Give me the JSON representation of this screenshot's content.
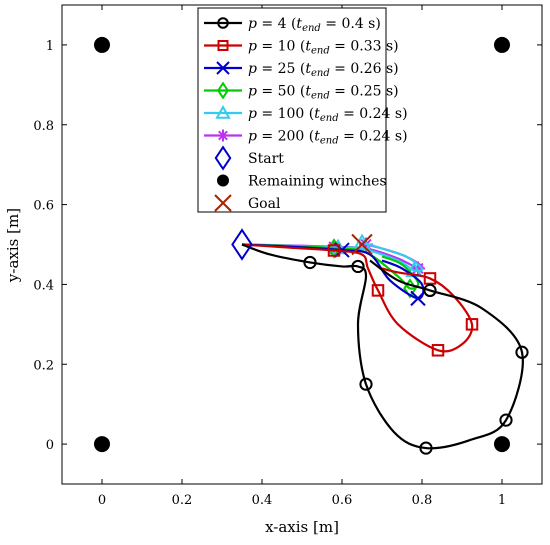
{
  "chart_data": {
    "type": "line",
    "title": "",
    "xlabel": "x-axis [m]",
    "ylabel": "y-axis [m]",
    "xlim": [
      -0.1,
      1.1
    ],
    "ylim": [
      -0.1,
      1.1
    ],
    "grid": false,
    "legend_position": "top",
    "x_ticks": [
      "0",
      "0.2",
      "0.4",
      "0.6",
      "0.8",
      "1"
    ],
    "x_tick_values": [
      0,
      0.2,
      0.4,
      0.6,
      0.8,
      1
    ],
    "y_ticks": [
      "0",
      "0.2",
      "0.4",
      "0.6",
      "0.8",
      "1"
    ],
    "y_tick_values": [
      0,
      0.2,
      0.4,
      0.6,
      0.8,
      1
    ],
    "series": [
      {
        "name": "p = 4 (t_end = 0.4 s)",
        "p": "4",
        "tend": "0.4",
        "color": "#000000",
        "marker": "circle",
        "points": [
          [
            0.35,
            0.5
          ],
          [
            0.42,
            0.475
          ],
          [
            0.52,
            0.455
          ],
          [
            0.6,
            0.445
          ],
          [
            0.64,
            0.445
          ],
          [
            0.66,
            0.42
          ],
          [
            0.64,
            0.3
          ],
          [
            0.66,
            0.15
          ],
          [
            0.73,
            0.03
          ],
          [
            0.81,
            -0.01
          ],
          [
            0.92,
            0.01
          ],
          [
            1.01,
            0.06
          ],
          [
            1.05,
            0.23
          ],
          [
            0.95,
            0.34
          ],
          [
            0.82,
            0.385
          ],
          [
            0.74,
            0.41
          ],
          [
            0.67,
            0.46
          ]
        ],
        "markers": [
          [
            0.52,
            0.455
          ],
          [
            0.64,
            0.445
          ],
          [
            0.66,
            0.15
          ],
          [
            0.81,
            -0.01
          ],
          [
            1.01,
            0.06
          ],
          [
            1.05,
            0.23
          ],
          [
            0.82,
            0.385
          ]
        ]
      },
      {
        "name": "p = 10 (t_end = 0.33 s)",
        "p": "10",
        "tend": "0.33",
        "color": "#cc0000",
        "marker": "square",
        "points": [
          [
            0.35,
            0.5
          ],
          [
            0.47,
            0.492
          ],
          [
            0.58,
            0.485
          ],
          [
            0.65,
            0.475
          ],
          [
            0.665,
            0.44
          ],
          [
            0.69,
            0.385
          ],
          [
            0.74,
            0.3
          ],
          [
            0.84,
            0.235
          ],
          [
            0.9,
            0.25
          ],
          [
            0.925,
            0.3
          ],
          [
            0.88,
            0.37
          ],
          [
            0.82,
            0.415
          ],
          [
            0.74,
            0.43
          ],
          [
            0.7,
            0.44
          ]
        ],
        "markers": [
          [
            0.58,
            0.485
          ],
          [
            0.69,
            0.385
          ],
          [
            0.84,
            0.235
          ],
          [
            0.925,
            0.3
          ],
          [
            0.82,
            0.415
          ]
        ]
      },
      {
        "name": "p = 25 (t_end = 0.26 s)",
        "p": "25",
        "tend": "0.26",
        "color": "#0000cc",
        "marker": "x",
        "points": [
          [
            0.35,
            0.5
          ],
          [
            0.5,
            0.493
          ],
          [
            0.6,
            0.486
          ],
          [
            0.67,
            0.475
          ],
          [
            0.72,
            0.41
          ],
          [
            0.79,
            0.365
          ],
          [
            0.8,
            0.4
          ],
          [
            0.75,
            0.44
          ],
          [
            0.7,
            0.46
          ]
        ],
        "markers": [
          [
            0.6,
            0.486
          ],
          [
            0.79,
            0.365
          ]
        ]
      },
      {
        "name": "p = 50 (t_end = 0.25 s)",
        "p": "50",
        "tend": "0.25",
        "color": "#00cc00",
        "marker": "diamond",
        "points": [
          [
            0.35,
            0.5
          ],
          [
            0.5,
            0.495
          ],
          [
            0.58,
            0.49
          ],
          [
            0.66,
            0.48
          ],
          [
            0.74,
            0.42
          ],
          [
            0.77,
            0.39
          ],
          [
            0.79,
            0.405
          ],
          [
            0.75,
            0.45
          ],
          [
            0.7,
            0.47
          ]
        ],
        "markers": [
          [
            0.58,
            0.49
          ],
          [
            0.77,
            0.39
          ]
        ]
      },
      {
        "name": "p = 100 (t_end = 0.24 s)",
        "p": "100",
        "tend": "0.24",
        "color": "#33ccee",
        "marker": "triangle",
        "points": [
          [
            0.35,
            0.5
          ],
          [
            0.5,
            0.496
          ],
          [
            0.59,
            0.492
          ],
          [
            0.65,
            0.49
          ],
          [
            0.74,
            0.46
          ],
          [
            0.78,
            0.435
          ],
          [
            0.8,
            0.44
          ],
          [
            0.76,
            0.47
          ],
          [
            0.7,
            0.49
          ],
          [
            0.65,
            0.505
          ]
        ],
        "markers": [
          [
            0.59,
            0.492
          ],
          [
            0.78,
            0.435
          ],
          [
            0.65,
            0.505
          ]
        ]
      },
      {
        "name": "p = 200 (t_end = 0.24 s)",
        "p": "200",
        "tend": "0.24",
        "color": "#bb33ee",
        "marker": "star",
        "points": [
          [
            0.35,
            0.5
          ],
          [
            0.5,
            0.497
          ],
          [
            0.58,
            0.494
          ],
          [
            0.66,
            0.49
          ],
          [
            0.74,
            0.465
          ],
          [
            0.79,
            0.44
          ],
          [
            0.8,
            0.445
          ],
          [
            0.76,
            0.47
          ],
          [
            0.7,
            0.49
          ],
          [
            0.66,
            0.5
          ]
        ],
        "markers": [
          [
            0.58,
            0.494
          ],
          [
            0.79,
            0.44
          ],
          [
            0.66,
            0.5
          ]
        ]
      }
    ],
    "start": {
      "name": "Start",
      "x": 0.35,
      "y": 0.5,
      "color": "#0000cc",
      "marker": "diamond"
    },
    "winches": {
      "name": "Remaining winches",
      "color": "#000000",
      "points": [
        [
          0,
          1
        ],
        [
          1,
          1
        ],
        [
          0,
          0
        ],
        [
          1,
          0
        ]
      ]
    },
    "goal": {
      "name": "Goal",
      "x": 0.65,
      "y": 0.5,
      "color": "#aa2200",
      "marker": "x"
    }
  }
}
